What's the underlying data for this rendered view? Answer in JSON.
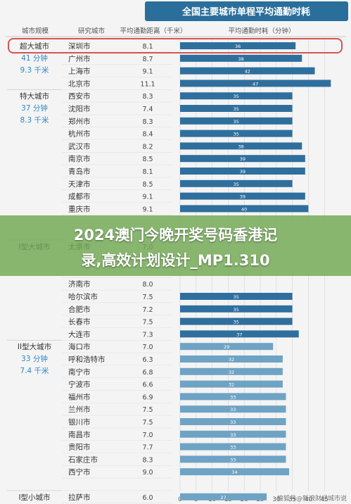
{
  "chart_data": {
    "type": "bar",
    "title": "全国主要城市单程平均通勤时耗",
    "column_headers": [
      "城市规模",
      "研究城市",
      "平均通勤距离（千米）",
      "平均通勤时耗（分钟）"
    ],
    "x_ticks": [
      "0",
      "5",
      "10",
      "15",
      "20",
      "25",
      "30",
      "35",
      "40",
      "45"
    ],
    "xlim": [
      0,
      50
    ],
    "grid": true,
    "highlighted_city": "深圳市",
    "groups": [
      {
        "name": "超大城市",
        "time_summary": "41 分钟",
        "distance_summary": "9.3 千米",
        "start": 0,
        "end": 3
      },
      {
        "name": "特大城市",
        "time_summary": "37 分钟",
        "distance_summary": "8.3 千米",
        "start": 4,
        "end": 15
      },
      {
        "name": "I型大城市",
        "time_summary": "",
        "distance_summary": "",
        "start": 16,
        "end": 23
      },
      {
        "name": "II型大城市",
        "time_summary": "33 分钟",
        "distance_summary": "7.4 千米",
        "start": 24,
        "end": 35
      },
      {
        "name": "I型小城市",
        "time_summary": "",
        "distance_summary": "",
        "start": 36,
        "end": 36
      }
    ],
    "rows": [
      {
        "city": "深圳市",
        "distance": "8.1",
        "time": 36
      },
      {
        "city": "广州市",
        "distance": "8.7",
        "time": 38
      },
      {
        "city": "上海市",
        "distance": "9.1",
        "time": 42
      },
      {
        "city": "北京市",
        "distance": "11.1",
        "time": 47
      },
      {
        "city": "西安市",
        "distance": "8.3",
        "time": 35
      },
      {
        "city": "沈阳市",
        "distance": "7.4",
        "time": 35
      },
      {
        "city": "郑州市",
        "distance": "8.3",
        "time": 35
      },
      {
        "city": "杭州市",
        "distance": "8.4",
        "time": 35
      },
      {
        "city": "武汉市",
        "distance": "8.2",
        "time": 38
      },
      {
        "city": "南京市",
        "distance": "8.5",
        "time": 39
      },
      {
        "city": "青岛市",
        "distance": "8.1",
        "time": 39
      },
      {
        "city": "天津市",
        "distance": "8.5",
        "time": 35
      },
      {
        "city": "成都市",
        "distance": "9.1",
        "time": 39
      },
      {
        "city": "重庆市",
        "distance": "9.1",
        "time": 40
      },
      {
        "city": "",
        "distance": "",
        "time": null
      },
      {
        "city": "",
        "distance": "",
        "time": null
      },
      {
        "city": "太原市",
        "distance": "7.0",
        "time": null
      },
      {
        "city": "",
        "distance": "",
        "time": null
      },
      {
        "city": "",
        "distance": "",
        "time": null
      },
      {
        "city": "济南市",
        "distance": "8.0",
        "time": null
      },
      {
        "city": "哈尔滨市",
        "distance": "7.5",
        "time": 35
      },
      {
        "city": "合肥市",
        "distance": "7.2",
        "time": 35
      },
      {
        "city": "长春市",
        "distance": "7.5",
        "time": 35
      },
      {
        "city": "大连市",
        "distance": "7.3",
        "time": 37
      },
      {
        "city": "海口市",
        "distance": "7.0",
        "time": 29
      },
      {
        "city": "呼和浩特市",
        "distance": "6.3",
        "time": 32
      },
      {
        "city": "南宁市",
        "distance": "6.8",
        "time": 32
      },
      {
        "city": "宁波市",
        "distance": "6.6",
        "time": 32
      },
      {
        "city": "福州市",
        "distance": "6.9",
        "time": 33
      },
      {
        "city": "兰州市",
        "distance": "7.5",
        "time": 33
      },
      {
        "city": "银川市",
        "distance": "7.5",
        "time": 33
      },
      {
        "city": "南昌市",
        "distance": "7.0",
        "time": 33
      },
      {
        "city": "贵阳市",
        "distance": "7.7",
        "time": 33
      },
      {
        "city": "石家庄市",
        "distance": "8.3",
        "time": 33
      },
      {
        "city": "西宁市",
        "distance": "9.0",
        "time": 34
      },
      {
        "city": "",
        "distance": "",
        "time": null
      },
      {
        "city": "拉萨市",
        "distance": "6.0",
        "time": 27
      }
    ],
    "colors": {
      "bar": "#2f6f9e",
      "bar_light": "#6fa3c4",
      "header": "#2a6f9b",
      "group_accent": "#2e89c9",
      "highlight": "#d9534f",
      "grid": "#d4d4d4"
    }
  },
  "banner": {
    "line1": "2024澳门今晚开奖号码香港记",
    "line2": "录,高效计划设计_MP1.310"
  },
  "watermark": "搜狐号@新浪财经城市说"
}
